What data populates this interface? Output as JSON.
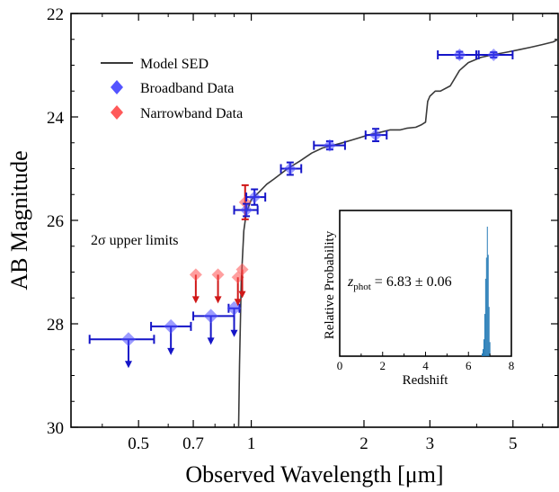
{
  "colors": {
    "broadband": "#4b4bff",
    "broadband_err": "#1515c8",
    "narrowband": "#ff5050",
    "narrowband_err": "#d01818",
    "model": "#3a3a3a",
    "hist": "#1f77b4"
  },
  "chart_data": [
    {
      "type": "scatter",
      "title": "",
      "xlabel": "Observed Wavelength [μm]",
      "ylabel": "AB Magnitude",
      "xscale": "log",
      "xlim": [
        0.33,
        6.6
      ],
      "ylim": [
        30,
        22
      ],
      "yaxis_inverted": true,
      "xticks": [
        0.5,
        0.7,
        1,
        2,
        3,
        5
      ],
      "xtick_labels": [
        "0.5",
        "0.7",
        "1",
        "2",
        "3",
        "5"
      ],
      "yticks": [
        22,
        24,
        26,
        28,
        30
      ],
      "ytick_labels": [
        "22",
        "24",
        "26",
        "28",
        "30"
      ],
      "grid": false,
      "legend_position": "top-left",
      "annotation": "2σ upper limits",
      "series": [
        {
          "name": "Model SED",
          "kind": "line",
          "points": [
            [
              0.925,
              30.0
            ],
            [
              0.93,
              28.8
            ],
            [
              0.94,
              27.2
            ],
            [
              0.955,
              26.2
            ],
            [
              0.97,
              25.85
            ],
            [
              1.0,
              25.6
            ],
            [
              1.05,
              25.45
            ],
            [
              1.1,
              25.3
            ],
            [
              1.15,
              25.2
            ],
            [
              1.25,
              25.0
            ],
            [
              1.35,
              24.85
            ],
            [
              1.45,
              24.7
            ],
            [
              1.55,
              24.6
            ],
            [
              1.65,
              24.55
            ],
            [
              1.75,
              24.5
            ],
            [
              1.85,
              24.45
            ],
            [
              1.95,
              24.4
            ],
            [
              2.05,
              24.35
            ],
            [
              2.2,
              24.3
            ],
            [
              2.35,
              24.25
            ],
            [
              2.5,
              24.25
            ],
            [
              2.6,
              24.22
            ],
            [
              2.75,
              24.2
            ],
            [
              2.85,
              24.15
            ],
            [
              2.92,
              24.1
            ],
            [
              2.96,
              23.7
            ],
            [
              3.0,
              23.6
            ],
            [
              3.1,
              23.5
            ],
            [
              3.2,
              23.5
            ],
            [
              3.4,
              23.4
            ],
            [
              3.6,
              23.1
            ],
            [
              3.8,
              22.95
            ],
            [
              4.1,
              22.85
            ],
            [
              4.4,
              22.8
            ],
            [
              4.8,
              22.75
            ],
            [
              5.2,
              22.7
            ],
            [
              5.6,
              22.65
            ],
            [
              6.0,
              22.6
            ],
            [
              6.4,
              22.55
            ],
            [
              6.6,
              22.5
            ]
          ]
        },
        {
          "name": "Broadband Data",
          "kind": "detections",
          "points": [
            {
              "x": 0.97,
              "y": 25.8,
              "xerr_low": 0.07,
              "xerr_high": 0.07,
              "yerr": 0.12
            },
            {
              "x": 1.02,
              "y": 25.55,
              "xerr_low": 0.05,
              "xerr_high": 0.07,
              "yerr": 0.15
            },
            {
              "x": 1.27,
              "y": 25.0,
              "xerr_low": 0.07,
              "xerr_high": 0.09,
              "yerr": 0.12
            },
            {
              "x": 1.62,
              "y": 24.55,
              "xerr_low": 0.15,
              "xerr_high": 0.16,
              "yerr": 0.08
            },
            {
              "x": 2.15,
              "y": 24.35,
              "xerr_low": 0.13,
              "xerr_high": 0.15,
              "yerr": 0.12
            },
            {
              "x": 3.6,
              "y": 22.8,
              "xerr_low": 0.45,
              "xerr_high": 0.45,
              "yerr": 0.06
            },
            {
              "x": 4.44,
              "y": 22.8,
              "xerr_low": 0.45,
              "xerr_high": 0.55,
              "yerr": 0.05
            }
          ],
          "upper_limits": [
            {
              "x": 0.47,
              "y": 28.3,
              "xerr_low": 0.1,
              "xerr_high": 0.08
            },
            {
              "x": 0.61,
              "y": 28.05,
              "xerr_low": 0.07,
              "xerr_high": 0.08
            },
            {
              "x": 0.78,
              "y": 27.85,
              "xerr_low": 0.08,
              "xerr_high": 0.12
            },
            {
              "x": 0.9,
              "y": 27.7,
              "xerr_low": 0.03,
              "xerr_high": 0.03
            }
          ]
        },
        {
          "name": "Narrowband Data",
          "kind": "detections",
          "points": [
            {
              "x": 0.963,
              "y": 25.65,
              "xerr_low": 0.0,
              "xerr_high": 0.0,
              "yerr": 0.33
            }
          ],
          "upper_limits": [
            {
              "x": 0.711,
              "y": 27.05
            },
            {
              "x": 0.815,
              "y": 27.05
            },
            {
              "x": 0.921,
              "y": 27.1
            },
            {
              "x": 0.946,
              "y": 26.95
            }
          ]
        }
      ]
    },
    {
      "type": "bar",
      "title": "",
      "xlabel": "Redshift",
      "ylabel": "Relative Probability",
      "xlim": [
        0,
        8
      ],
      "xticks": [
        0,
        2,
        4,
        6,
        8
      ],
      "xtick_labels": [
        "0",
        "2",
        "4",
        "6",
        "8"
      ],
      "annotation": "z_phot = 6.83 ± 0.06",
      "bins": [
        6.62,
        6.66,
        6.7,
        6.74,
        6.78,
        6.82,
        6.86,
        6.9,
        6.94,
        6.98,
        7.02
      ],
      "values": [
        0.02,
        0.05,
        0.12,
        0.3,
        0.55,
        0.7,
        0.92,
        0.72,
        0.35,
        0.1,
        0.03
      ]
    }
  ]
}
